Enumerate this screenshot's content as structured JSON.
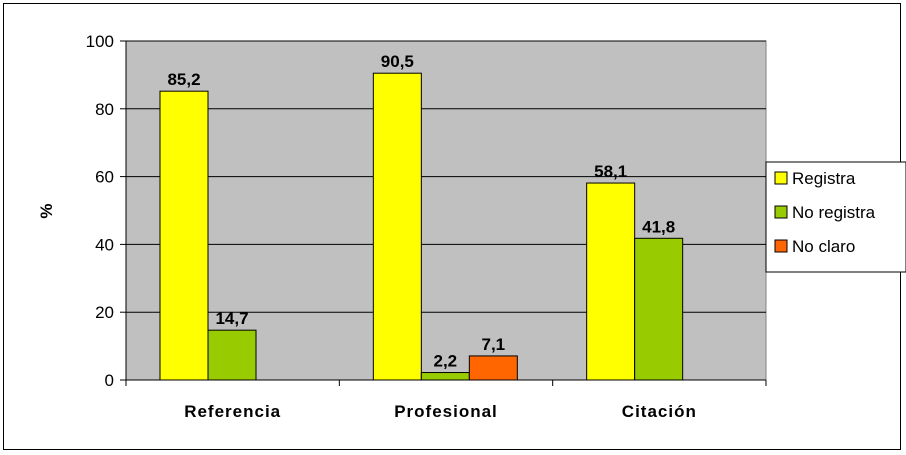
{
  "chart_data": {
    "type": "bar",
    "title": "",
    "xlabel": "",
    "ylabel": "%",
    "categories": [
      "Referencia",
      "Profesional",
      "Citación"
    ],
    "series": [
      {
        "name": "Registra",
        "values": [
          85.2,
          90.5,
          58.1
        ],
        "labels": [
          "85,2",
          "90,5",
          "58,1"
        ],
        "color": "#ffff00"
      },
      {
        "name": "No registra",
        "values": [
          14.7,
          2.2,
          41.8
        ],
        "labels": [
          "14,7",
          "2,2",
          "41,8"
        ],
        "color": "#99cc00"
      },
      {
        "name": "No claro",
        "values": [
          null,
          7.1,
          null
        ],
        "labels": [
          "",
          "7,1",
          ""
        ],
        "color": "#ff6600"
      }
    ],
    "ylim": [
      0,
      100
    ],
    "yticks": [
      0,
      20,
      40,
      60,
      80,
      100
    ],
    "grid": true,
    "plot_background": "#c0c0c0",
    "legend_position": "right"
  }
}
